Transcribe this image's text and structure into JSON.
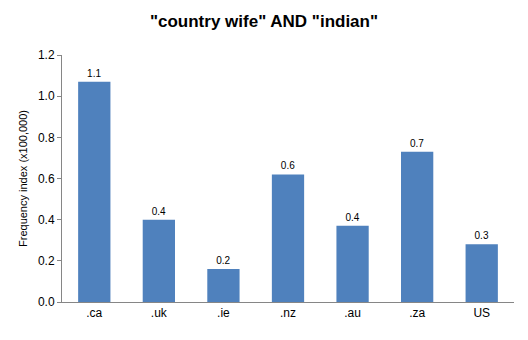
{
  "chart_data": {
    "type": "bar",
    "title": "\"country wife\" AND \"indian\"",
    "y_label": "Frequency index (x100,000)",
    "categories": [
      ".ca",
      ".uk",
      ".ie",
      ".nz",
      ".au",
      ".za",
      "US"
    ],
    "values": [
      1.07,
      0.4,
      0.16,
      0.62,
      0.37,
      0.73,
      0.28
    ],
    "value_labels": [
      "1.1",
      "0.4",
      "0.2",
      "0.6",
      "0.4",
      "0.7",
      "0.3"
    ],
    "color": "#4f81bd",
    "ylim": [
      0,
      1.2
    ],
    "yticks": [
      {
        "value": 0,
        "label": "0.0"
      },
      0.2,
      0.4,
      0.6,
      0.8,
      {
        "value": 1,
        "label": "1.0"
      },
      1.2
    ],
    "grid": false,
    "data_labels": true
  }
}
